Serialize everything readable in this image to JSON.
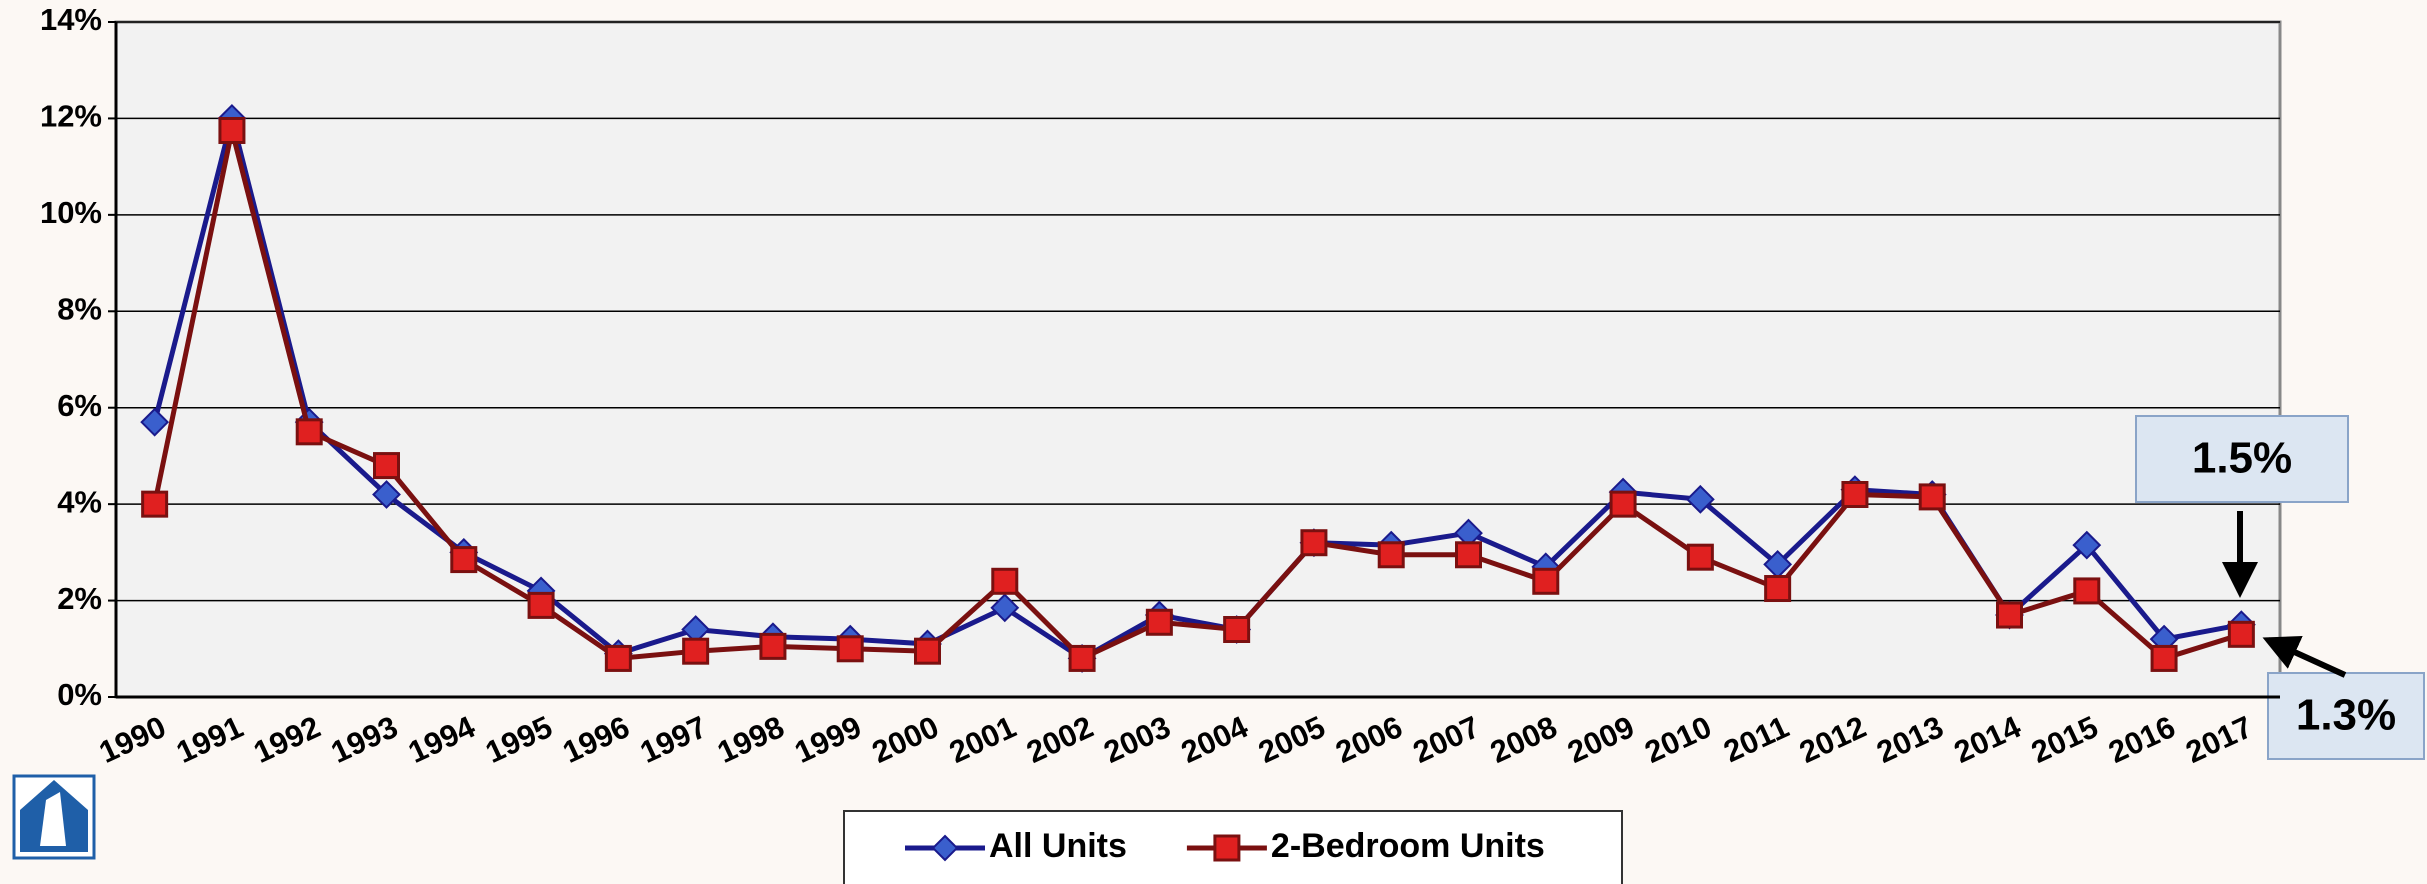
{
  "chart_data": {
    "type": "line",
    "categories": [
      "1990",
      "1991",
      "1992",
      "1993",
      "1994",
      "1995",
      "1996",
      "1997",
      "1998",
      "1999",
      "2000",
      "2001",
      "2002",
      "2003",
      "2004",
      "2005",
      "2006",
      "2007",
      "2008",
      "2009",
      "2010",
      "2011",
      "2012",
      "2013",
      "2014",
      "2015",
      "2016",
      "2017"
    ],
    "series": [
      {
        "name": "All Units",
        "color": "#1a1a8c",
        "marker_color": "#3a5fcd",
        "marker": "diamond",
        "values": [
          5.7,
          12.0,
          5.7,
          4.2,
          3.0,
          2.2,
          0.9,
          1.4,
          1.25,
          1.2,
          1.1,
          1.85,
          0.8,
          1.7,
          1.4,
          3.2,
          3.15,
          3.4,
          2.7,
          4.25,
          4.1,
          2.75,
          4.3,
          4.2,
          1.7,
          3.15,
          1.2,
          1.5
        ]
      },
      {
        "name": "2-Bedroom Units",
        "color": "#7a1010",
        "marker_color": "#e02020",
        "marker": "square",
        "values": [
          4.0,
          11.75,
          5.5,
          4.8,
          2.85,
          1.9,
          0.8,
          0.95,
          1.05,
          1.0,
          0.95,
          2.4,
          0.8,
          1.55,
          1.4,
          3.2,
          2.95,
          2.95,
          2.4,
          4.0,
          2.9,
          2.25,
          4.2,
          4.15,
          1.7,
          2.2,
          0.8,
          1.3
        ]
      }
    ],
    "ylim": [
      0,
      14
    ],
    "yticks": [
      {
        "value": 0,
        "label": "0%"
      },
      {
        "value": 2,
        "label": "2%"
      },
      {
        "value": 4,
        "label": "4%"
      },
      {
        "value": 6,
        "label": "6%"
      },
      {
        "value": 8,
        "label": "8%"
      },
      {
        "value": 10,
        "label": "10%"
      },
      {
        "value": 12,
        "label": "12%"
      },
      {
        "value": 14,
        "label": "14%"
      }
    ],
    "grid": true,
    "legend": "bottom",
    "annotations": [
      {
        "text": "1.5%"
      },
      {
        "text": "1.3%"
      }
    ]
  }
}
